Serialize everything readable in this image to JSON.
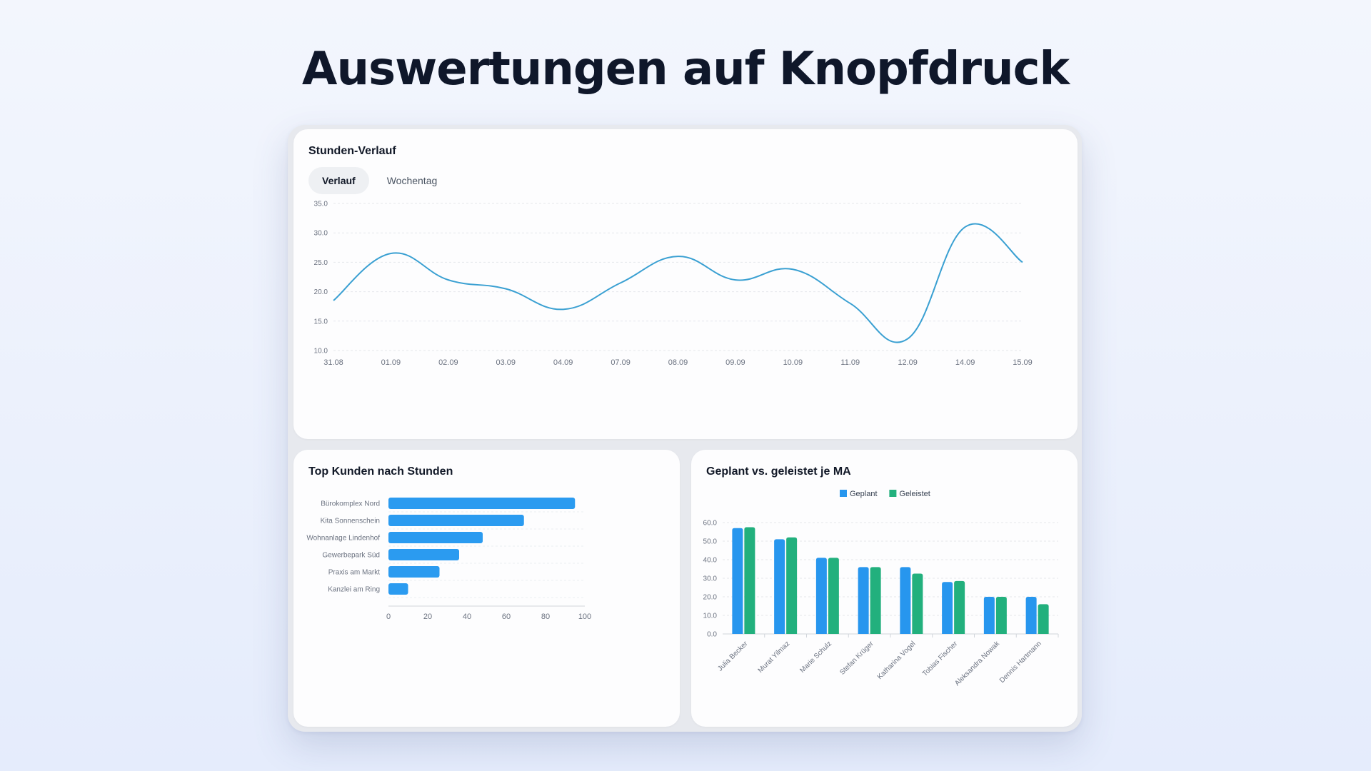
{
  "headline": "Auswertungen auf Knopfdruck",
  "colors": {
    "line": "#3aa0d2",
    "bar": "#2b9bf0",
    "planned": "#2796ee",
    "done": "#22b07d"
  },
  "line_card": {
    "title": "Stunden-Verlauf",
    "tabs": [
      {
        "label": "Verlauf",
        "active": true
      },
      {
        "label": "Wochentag",
        "active": false
      }
    ]
  },
  "customers_card": {
    "title": "Top Kunden nach Stunden"
  },
  "employees_card": {
    "title": "Geplant vs. geleistet je MA"
  },
  "chart_data": [
    {
      "type": "line",
      "title": "Stunden-Verlauf",
      "x": [
        "31.08",
        "01.09",
        "02.09",
        "03.09",
        "04.09",
        "07.09",
        "08.09",
        "09.09",
        "10.09",
        "11.09",
        "12.09",
        "14.09",
        "15.09"
      ],
      "y": [
        18.5,
        26.5,
        22.0,
        20.5,
        17.0,
        21.5,
        26.0,
        22.0,
        23.8,
        18.0,
        12.0,
        31.0,
        25.0
      ],
      "ylim": [
        10,
        35
      ],
      "yticks": [
        "10.0",
        "15.0",
        "20.0",
        "25.0",
        "30.0",
        "35.0"
      ],
      "grid": true
    },
    {
      "type": "bar",
      "orientation": "horizontal",
      "title": "Top Kunden nach Stunden",
      "categories": [
        "Bürokomplex Nord",
        "Kita Sonnenschein",
        "Wohnanlage Lindenhof",
        "Gewerbepark Süd",
        "Praxis am Markt",
        "Kanzlei am Ring"
      ],
      "values": [
        95,
        69,
        48,
        36,
        26,
        10
      ],
      "xlim": [
        0,
        100
      ],
      "xticks": [
        "0",
        "20",
        "40",
        "60",
        "80",
        "100"
      ],
      "grid": true
    },
    {
      "type": "bar",
      "title": "Geplant vs. geleistet je MA",
      "categories": [
        "Julia Becker",
        "Murat Yilmaz",
        "Marie Schulz",
        "Stefan Krüger",
        "Katharina Vogel",
        "Tobias Fischer",
        "Aleksandra Nowak",
        "Dennis Hartmann"
      ],
      "series": [
        {
          "name": "Geplant",
          "values": [
            57,
            51,
            41,
            36,
            36,
            28,
            20,
            20
          ]
        },
        {
          "name": "Geleistet",
          "values": [
            57.5,
            52,
            41,
            36,
            32.5,
            28.5,
            20,
            16
          ]
        }
      ],
      "ylim": [
        0,
        60
      ],
      "yticks": [
        "0.0",
        "10.0",
        "20.0",
        "30.0",
        "40.0",
        "50.0",
        "60.0"
      ],
      "legend": "top-center",
      "grid": true
    }
  ]
}
